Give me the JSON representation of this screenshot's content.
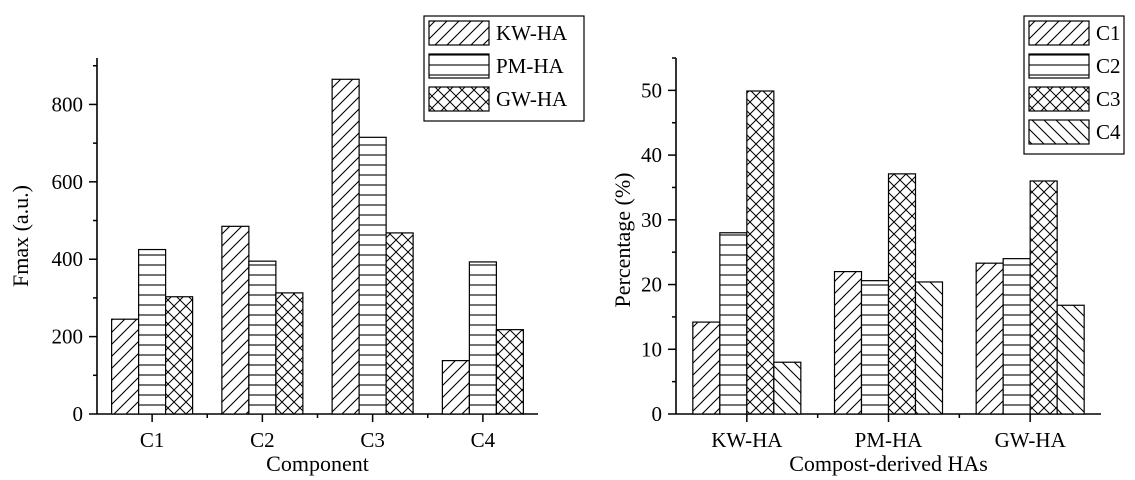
{
  "chart_data": [
    {
      "type": "bar",
      "categories": [
        "C1",
        "C2",
        "C3",
        "C4"
      ],
      "series": [
        {
          "name": "KW-HA",
          "pattern": "diag-fwd",
          "values": [
            245,
            485,
            865,
            138
          ]
        },
        {
          "name": "PM-HA",
          "pattern": "horiz",
          "values": [
            425,
            395,
            715,
            393
          ]
        },
        {
          "name": "GW-HA",
          "pattern": "cross",
          "values": [
            303,
            313,
            468,
            218
          ]
        }
      ],
      "xlabel": "Component",
      "ylabel": "Fmax (a.u.)",
      "ylim": [
        0,
        920
      ],
      "yticks": [
        0,
        200,
        400,
        600,
        800
      ],
      "legend_position": "top-right",
      "grid": false
    },
    {
      "type": "bar",
      "categories": [
        "KW-HA",
        "PM-HA",
        "GW-HA"
      ],
      "series": [
        {
          "name": "C1",
          "pattern": "diag-fwd",
          "values": [
            14.2,
            22.0,
            23.3
          ]
        },
        {
          "name": "C2",
          "pattern": "horiz",
          "values": [
            28.0,
            20.6,
            24.0
          ]
        },
        {
          "name": "C3",
          "pattern": "cross",
          "values": [
            49.9,
            37.1,
            36.0
          ]
        },
        {
          "name": "C4",
          "pattern": "diag-back",
          "values": [
            8.0,
            20.4,
            16.8
          ]
        }
      ],
      "xlabel": "Compost-derived HAs",
      "ylabel": "Percentage (%)",
      "ylim": [
        0,
        55
      ],
      "yticks": [
        0,
        10,
        20,
        30,
        40,
        50
      ],
      "legend_position": "top-right",
      "grid": false
    }
  ]
}
